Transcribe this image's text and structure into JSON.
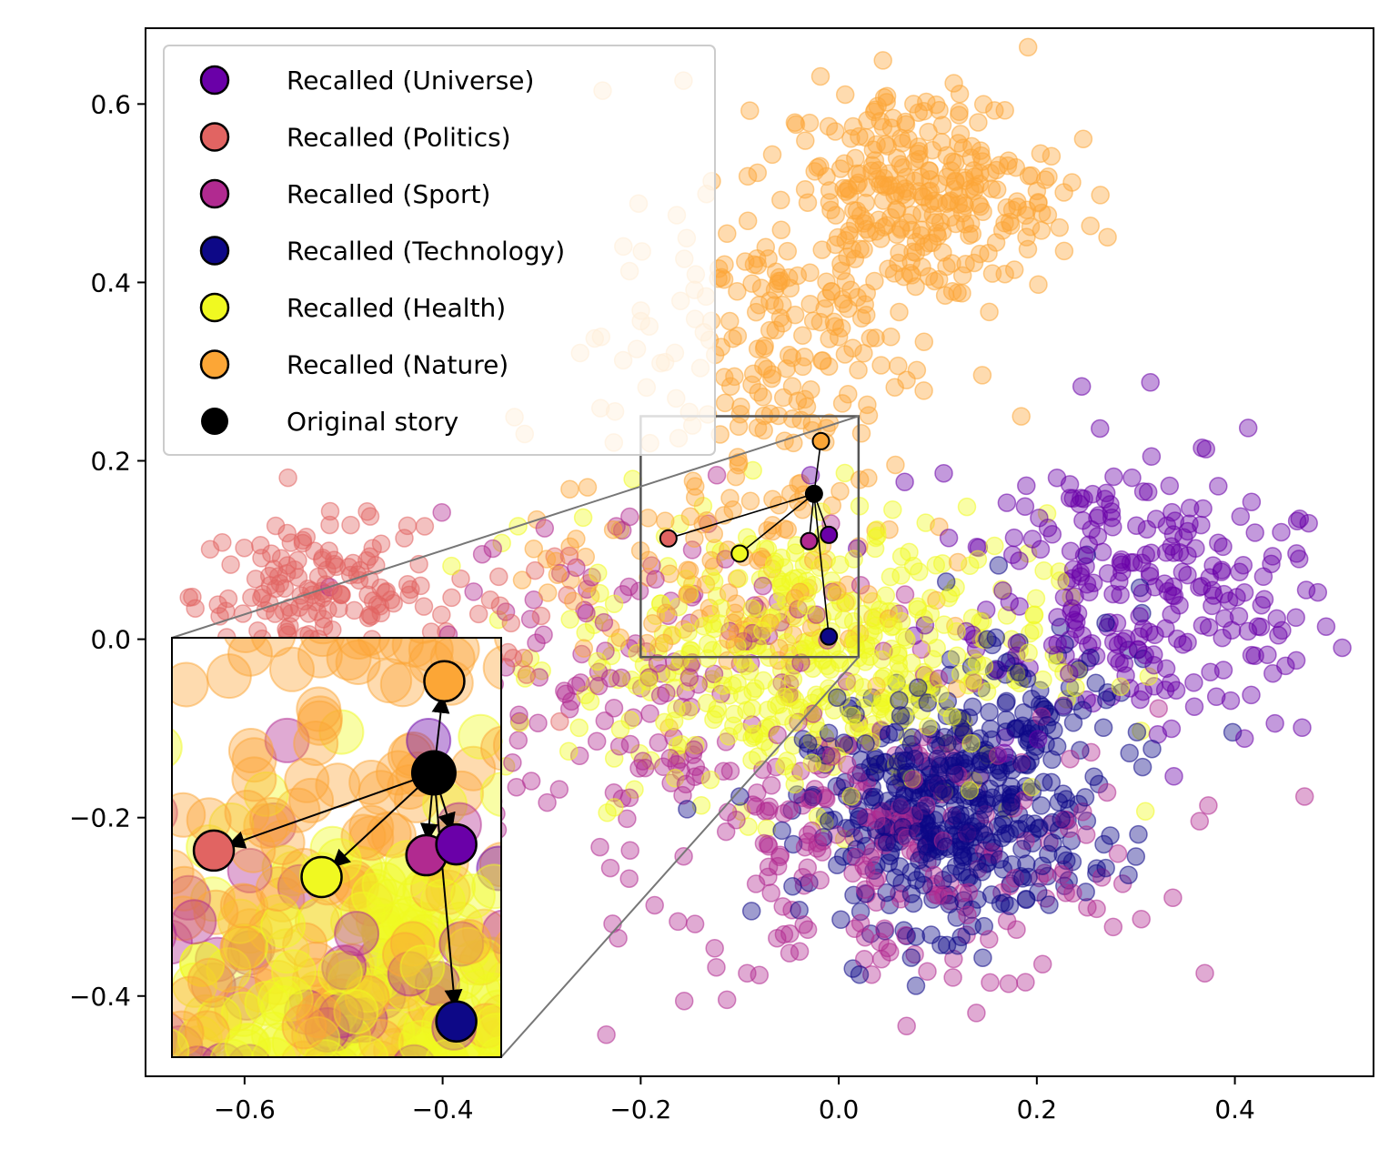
{
  "chart_data": {
    "type": "scatter",
    "title": "",
    "xlabel": "",
    "ylabel": "",
    "xlim": [
      -0.7,
      0.54
    ],
    "ylim": [
      -0.49,
      0.685
    ],
    "x_ticks": [
      -0.6,
      -0.4,
      -0.2,
      0.0,
      0.2,
      0.4
    ],
    "x_tick_labels": [
      "−0.6",
      "−0.4",
      "−0.2",
      "0.0",
      "0.2",
      "0.4"
    ],
    "y_ticks": [
      -0.4,
      -0.2,
      0.0,
      0.2,
      0.4,
      0.6
    ],
    "y_tick_labels": [
      "−0.4",
      "−0.2",
      "0.0",
      "0.2",
      "0.4",
      "0.6"
    ],
    "grid": false,
    "legend_position": "top-left",
    "series": [
      {
        "name": "Recalled (Universe)",
        "color": "#6a00a8",
        "clusters": [
          {
            "center": [
              0.36,
              0.03
            ],
            "spread": [
              0.07,
              0.07
            ],
            "count": 120
          },
          {
            "center": [
              0.25,
              0.08
            ],
            "spread": [
              0.08,
              0.09
            ],
            "count": 130
          }
        ]
      },
      {
        "name": "Recalled (Politics)",
        "color": "#e16462",
        "clusters": [
          {
            "center": [
              -0.53,
              0.05
            ],
            "spread": [
              0.06,
              0.04
            ],
            "count": 130
          },
          {
            "center": [
              -0.4,
              0.0
            ],
            "spread": [
              0.08,
              0.06
            ],
            "count": 40
          }
        ]
      },
      {
        "name": "Recalled (Sport)",
        "color": "#b12a90",
        "clusters": [
          {
            "center": [
              0.06,
              -0.24
            ],
            "spread": [
              0.13,
              0.08
            ],
            "count": 230
          },
          {
            "center": [
              -0.2,
              -0.05
            ],
            "spread": [
              0.12,
              0.1
            ],
            "count": 170
          }
        ]
      },
      {
        "name": "Recalled (Technology)",
        "color": "#0d0887",
        "clusters": [
          {
            "center": [
              0.11,
              -0.2
            ],
            "spread": [
              0.07,
              0.06
            ],
            "count": 420
          },
          {
            "center": [
              0.19,
              -0.08
            ],
            "spread": [
              0.07,
              0.06
            ],
            "count": 90
          }
        ]
      },
      {
        "name": "Recalled (Health)",
        "color": "#f0f921",
        "clusters": [
          {
            "center": [
              -0.03,
              -0.02
            ],
            "spread": [
              0.12,
              0.08
            ],
            "count": 460
          }
        ]
      },
      {
        "name": "Recalled (Nature)",
        "color": "#fca636",
        "clusters": [
          {
            "center": [
              0.08,
              0.5
            ],
            "spread": [
              0.07,
              0.06
            ],
            "count": 300
          },
          {
            "center": [
              -0.08,
              0.33
            ],
            "spread": [
              0.08,
              0.08
            ],
            "count": 170
          },
          {
            "center": [
              -0.12,
              0.08
            ],
            "spread": [
              0.1,
              0.08
            ],
            "count": 130
          }
        ]
      }
    ],
    "original_story": {
      "name": "Original story",
      "color": "#000000",
      "x": -0.025,
      "y": 0.163
    },
    "recalled_points": [
      {
        "topic": "Nature",
        "color": "#fca636",
        "x": -0.018,
        "y": 0.222
      },
      {
        "topic": "Politics",
        "color": "#e16462",
        "x": -0.172,
        "y": 0.113
      },
      {
        "topic": "Health",
        "color": "#f0f921",
        "x": -0.1,
        "y": 0.096
      },
      {
        "topic": "Sport",
        "color": "#b12a90",
        "x": -0.03,
        "y": 0.11
      },
      {
        "topic": "Universe",
        "color": "#6a00a8",
        "x": -0.01,
        "y": 0.117
      },
      {
        "topic": "Technology",
        "color": "#0d0887",
        "x": -0.01,
        "y": 0.003
      }
    ],
    "inset": {
      "zoom_xlim": [
        -0.2,
        0.02
      ],
      "zoom_ylim": [
        -0.02,
        0.25
      ]
    }
  }
}
